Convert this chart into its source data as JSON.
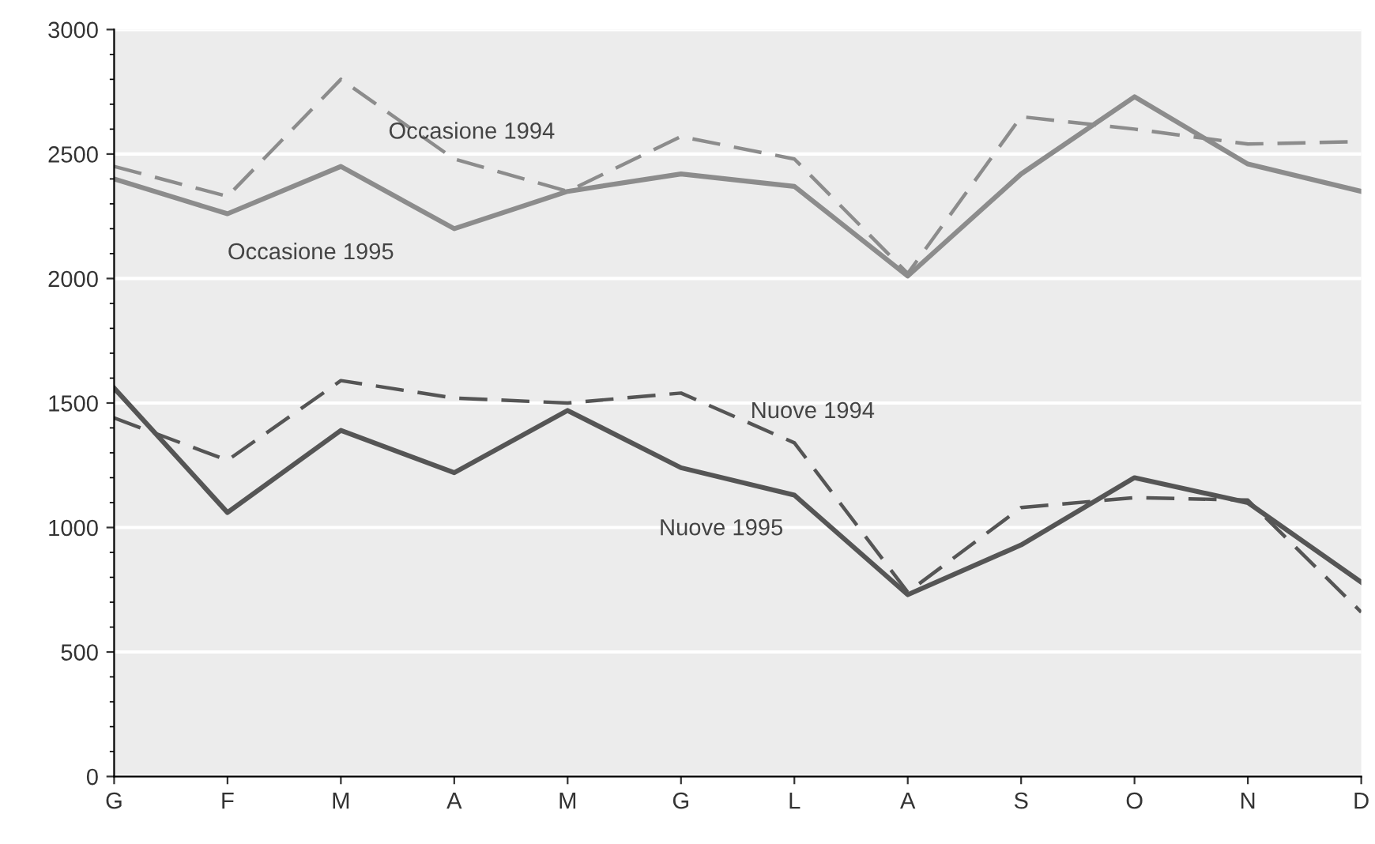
{
  "chart_data": {
    "type": "line",
    "categories": [
      "G",
      "F",
      "M",
      "A",
      "M",
      "G",
      "L",
      "A",
      "S",
      "O",
      "N",
      "D"
    ],
    "series": [
      {
        "name": "Occasione 1994",
        "color": "#8c8c8c",
        "line_style": "dashed",
        "values": [
          2450,
          2330,
          2800,
          2480,
          2350,
          2570,
          2480,
          2020,
          2650,
          2600,
          2540,
          2550
        ]
      },
      {
        "name": "Occasione 1995",
        "color": "#8c8c8c",
        "line_style": "solid",
        "values": [
          2400,
          2260,
          2450,
          2200,
          2350,
          2420,
          2370,
          2010,
          2420,
          2730,
          2460,
          2350
        ]
      },
      {
        "name": "Nuove 1994",
        "color": "#555555",
        "line_style": "dashed",
        "values": [
          1440,
          1270,
          1590,
          1520,
          1500,
          1540,
          1340,
          740,
          1080,
          1120,
          1110,
          660
        ]
      },
      {
        "name": "Nuove 1995",
        "color": "#555555",
        "line_style": "solid",
        "values": [
          1560,
          1060,
          1390,
          1220,
          1470,
          1240,
          1130,
          730,
          930,
          1200,
          1100,
          780
        ]
      }
    ],
    "ylim": [
      0,
      3000
    ],
    "yticks": [
      0,
      500,
      1000,
      1500,
      2000,
      2500,
      3000
    ],
    "grid": "y",
    "legend": false,
    "marker": "none"
  }
}
